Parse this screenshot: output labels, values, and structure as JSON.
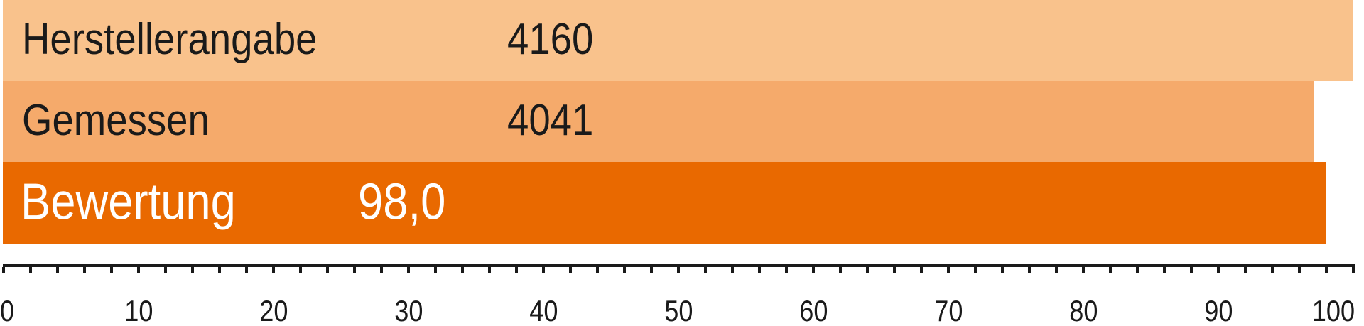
{
  "chart_data": {
    "type": "bar",
    "orientation": "horizontal",
    "rows": [
      {
        "label": "Herstellerangabe",
        "value_label": "4160",
        "scale_value": 100.0,
        "bar_color": "#F9C28C",
        "text_color": "#1A1A1A"
      },
      {
        "label": "Gemessen",
        "value_label": "4041",
        "scale_value": 97.1,
        "bar_color": "#F5AA6B",
        "text_color": "#1A1A1A"
      },
      {
        "label": "Bewertung",
        "value_label": "98,0",
        "scale_value": 98.0,
        "bar_color": "#E96900",
        "text_color": "#FFFFFF"
      }
    ],
    "axis": {
      "min": 0,
      "max": 100,
      "minor_step": 2,
      "major_step": 10,
      "tick_labels": [
        "0",
        "10",
        "20",
        "30",
        "40",
        "50",
        "60",
        "70",
        "80",
        "90",
        "100"
      ],
      "color": "#1A1A1A"
    },
    "grid": false,
    "legend": false,
    "title": ""
  }
}
